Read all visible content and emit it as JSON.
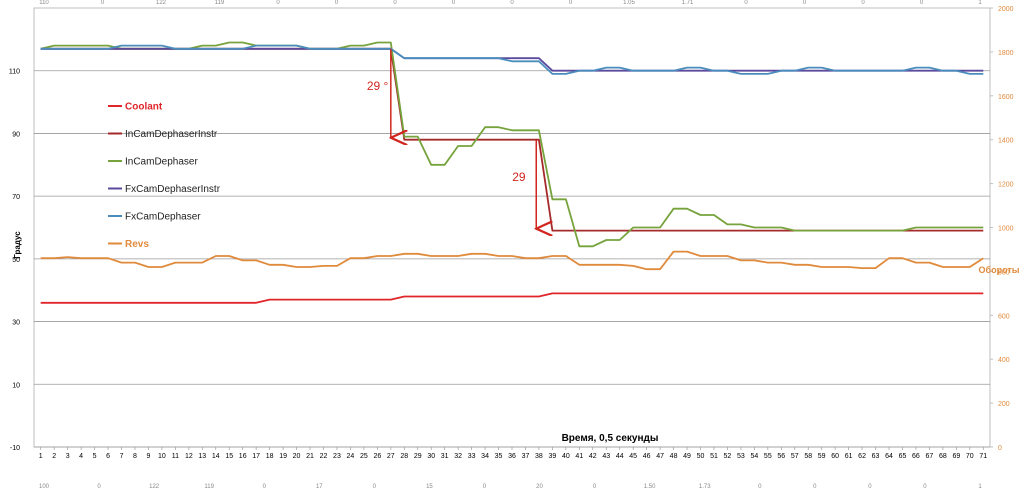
{
  "chart_data": {
    "type": "line",
    "x": [
      1,
      2,
      3,
      4,
      5,
      6,
      7,
      8,
      9,
      10,
      11,
      12,
      13,
      14,
      15,
      16,
      17,
      18,
      19,
      20,
      21,
      22,
      23,
      24,
      25,
      26,
      27,
      28,
      29,
      30,
      31,
      32,
      33,
      34,
      35,
      36,
      37,
      38,
      39,
      40,
      41,
      42,
      43,
      44,
      45,
      46,
      47,
      48,
      49,
      50,
      51,
      52,
      53,
      54,
      55,
      56,
      57,
      58,
      59,
      60,
      61,
      62,
      63,
      64,
      65,
      66,
      67,
      68,
      69,
      70,
      71
    ],
    "xlabel": "Время, 0,5 секунды",
    "ylabel_left": "Градус",
    "ylabel_right": "Обороты",
    "left_axis": {
      "ylim": [
        -10,
        130
      ],
      "ticks": [
        -10,
        10,
        30,
        50,
        70,
        90,
        110
      ]
    },
    "right_axis": {
      "ylim": [
        0,
        2000
      ],
      "ticks": [
        0,
        200,
        400,
        600,
        800,
        1000,
        1200,
        1400,
        1600,
        1800,
        2000
      ]
    },
    "grid": true,
    "legend_position": "left",
    "series": [
      {
        "name": "Coolant",
        "axis": "left",
        "color": "#e0262a",
        "values": [
          36,
          36,
          36,
          36,
          36,
          36,
          36,
          36,
          36,
          36,
          36,
          36,
          36,
          36,
          36,
          36,
          36,
          37,
          37,
          37,
          37,
          37,
          37,
          37,
          37,
          37,
          37,
          38,
          38,
          38,
          38,
          38,
          38,
          38,
          38,
          38,
          38,
          38,
          39,
          39,
          39,
          39,
          39,
          39,
          39,
          39,
          39,
          39,
          39,
          39,
          39,
          39,
          39,
          39,
          39,
          39,
          39,
          39,
          39,
          39,
          39,
          39,
          39,
          39,
          39,
          39,
          39,
          39,
          39,
          39,
          39
        ]
      },
      {
        "name": "InCamDephaserInstr",
        "axis": "left",
        "color": "#a52a2a",
        "values": [
          117,
          117,
          117,
          117,
          117,
          117,
          117,
          117,
          117,
          117,
          117,
          117,
          117,
          117,
          117,
          117,
          117,
          117,
          117,
          117,
          117,
          117,
          117,
          117,
          117,
          117,
          117,
          88,
          88,
          88,
          88,
          88,
          88,
          88,
          88,
          88,
          88,
          88,
          59,
          59,
          59,
          59,
          59,
          59,
          59,
          59,
          59,
          59,
          59,
          59,
          59,
          59,
          59,
          59,
          59,
          59,
          59,
          59,
          59,
          59,
          59,
          59,
          59,
          59,
          59,
          59,
          59,
          59,
          59,
          59,
          59
        ]
      },
      {
        "name": "InCamDephaser",
        "axis": "left",
        "color": "#76a33c",
        "values": [
          117,
          118,
          118,
          118,
          118,
          118,
          117,
          117,
          117,
          117,
          117,
          117,
          118,
          118,
          119,
          119,
          118,
          118,
          118,
          118,
          117,
          117,
          117,
          118,
          118,
          119,
          119,
          89,
          89,
          80,
          80,
          86,
          86,
          92,
          92,
          91,
          91,
          91,
          69,
          69,
          54,
          54,
          56,
          56,
          60,
          60,
          60,
          66,
          66,
          64,
          64,
          61,
          61,
          60,
          60,
          60,
          59,
          59,
          59,
          59,
          59,
          59,
          59,
          59,
          59,
          60,
          60,
          60,
          60,
          60,
          60
        ]
      },
      {
        "name": "FxCamDephaserInstr",
        "axis": "left",
        "color": "#5b4a9e",
        "values": [
          117,
          117,
          117,
          117,
          117,
          117,
          117,
          117,
          117,
          117,
          117,
          117,
          117,
          117,
          117,
          117,
          117,
          117,
          117,
          117,
          117,
          117,
          117,
          117,
          117,
          117,
          117,
          114,
          114,
          114,
          114,
          114,
          114,
          114,
          114,
          114,
          114,
          114,
          110,
          110,
          110,
          110,
          110,
          110,
          110,
          110,
          110,
          110,
          110,
          110,
          110,
          110,
          110,
          110,
          110,
          110,
          110,
          110,
          110,
          110,
          110,
          110,
          110,
          110,
          110,
          110,
          110,
          110,
          110,
          110,
          110
        ]
      },
      {
        "name": "FxCamDephaser",
        "axis": "left",
        "color": "#4a8dbd",
        "values": [
          117,
          117,
          117,
          117,
          117,
          117,
          118,
          118,
          118,
          118,
          117,
          117,
          117,
          117,
          117,
          117,
          118,
          118,
          118,
          118,
          117,
          117,
          117,
          117,
          117,
          117,
          117,
          114,
          114,
          114,
          114,
          114,
          114,
          114,
          114,
          113,
          113,
          113,
          109,
          109,
          110,
          110,
          111,
          111,
          110,
          110,
          110,
          110,
          111,
          111,
          110,
          110,
          109,
          109,
          109,
          110,
          110,
          111,
          111,
          110,
          110,
          110,
          110,
          110,
          110,
          111,
          111,
          110,
          110,
          109,
          109
        ]
      },
      {
        "name": "Revs",
        "axis": "right",
        "color": "#e08a3c",
        "values": [
          860,
          860,
          865,
          860,
          860,
          860,
          840,
          840,
          820,
          820,
          840,
          840,
          840,
          870,
          870,
          850,
          850,
          830,
          830,
          820,
          820,
          825,
          825,
          860,
          860,
          870,
          870,
          880,
          880,
          870,
          870,
          870,
          880,
          880,
          870,
          870,
          860,
          860,
          870,
          870,
          830,
          830,
          830,
          830,
          825,
          810,
          810,
          890,
          890,
          870,
          870,
          870,
          850,
          850,
          840,
          840,
          830,
          830,
          820,
          820,
          820,
          815,
          815,
          860,
          860,
          840,
          840,
          820,
          820,
          820,
          860
        ]
      }
    ],
    "annotations": [
      {
        "text": "29 °",
        "x": 27,
        "y_from": 117,
        "y_to": 88
      },
      {
        "text": "29",
        "x": 37.8,
        "y_from": 88,
        "y_to": 59
      }
    ],
    "top_axis_labels": [
      "110",
      "0",
      "122",
      "119",
      "0",
      "0",
      "0",
      "0",
      "0",
      "0",
      "1.05",
      "1.71",
      "0",
      "0",
      "0",
      "0",
      "1"
    ],
    "bottom_axis_labels": [
      "100",
      "0",
      "122",
      "119",
      "0",
      "17",
      "0",
      "15",
      "0",
      "20",
      "0",
      "1.50",
      "1.73",
      "0",
      "0",
      "0",
      "0",
      "1"
    ]
  }
}
